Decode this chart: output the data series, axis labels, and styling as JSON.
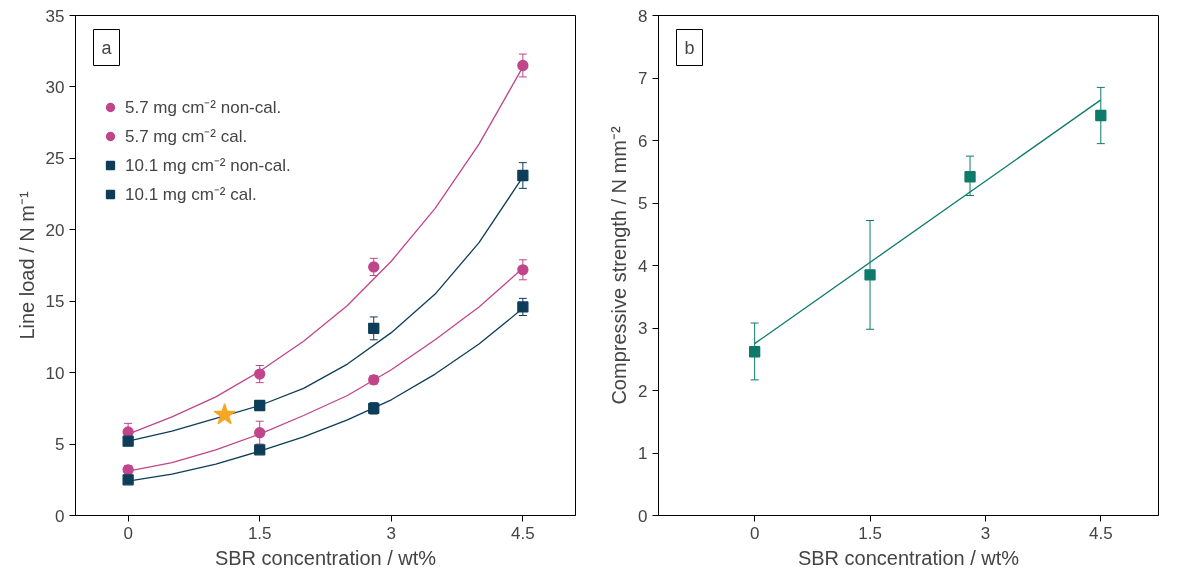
{
  "chart_data": [
    {
      "type": "scatter",
      "xlabel": "SBR concentration / wt%",
      "ylabel": "Line load / N m⁻¹",
      "xlim": [
        -0.6,
        5.1
      ],
      "ylim": [
        0,
        35
      ],
      "xticks": [
        0,
        1.5,
        3,
        4.5
      ],
      "yticks": [
        0,
        5,
        10,
        15,
        20,
        25,
        30,
        35
      ],
      "grid": false,
      "legend": "top left",
      "annotations": [
        "a"
      ],
      "series": [
        {
          "name": "5.7 mg cm⁻² non-cal.",
          "color": "#c0458a",
          "marker": "circle",
          "x": [
            0,
            1.5,
            2.8,
            4.5
          ],
          "values": [
            3.2,
            5.8,
            9.5,
            17.2
          ],
          "errors": [
            0.3,
            0.8,
            0.3,
            0.7
          ]
        },
        {
          "name": "5.7 mg cm⁻² cal.",
          "color": "#c0458a",
          "marker": "circle",
          "x": [
            0,
            1.5,
            2.8,
            4.5
          ],
          "values": [
            5.85,
            9.9,
            17.4,
            31.5
          ],
          "errors": [
            0.6,
            0.6,
            0.6,
            0.8
          ]
        },
        {
          "name": "10.1 mg cm⁻² non-cal.",
          "color": "#0e3d5a",
          "marker": "square",
          "x": [
            0,
            1.5,
            2.8,
            4.5
          ],
          "values": [
            2.5,
            4.6,
            7.5,
            14.6
          ],
          "errors": [
            0.2,
            0.2,
            0.4,
            0.6
          ]
        },
        {
          "name": "10.1 mg cm⁻² cal.",
          "color": "#0e3d5a",
          "marker": "square",
          "x": [
            0,
            1.5,
            2.8,
            4.5
          ],
          "values": [
            5.2,
            7.7,
            13.1,
            23.8
          ],
          "errors": [
            0.2,
            0.3,
            0.8,
            0.9
          ]
        },
        {
          "type": "line",
          "color": "#c0458a",
          "x": [
            0,
            0.5,
            1,
            1.5,
            2,
            2.5,
            3,
            3.5,
            4,
            4.5
          ],
          "values": [
            3.1,
            3.7,
            4.6,
            5.7,
            7.0,
            8.4,
            10.2,
            12.3,
            14.6,
            17.3
          ]
        },
        {
          "type": "line",
          "color": "#c0458a",
          "x": [
            0,
            0.5,
            1,
            1.5,
            2,
            2.5,
            3,
            3.5,
            4,
            4.5
          ],
          "values": [
            5.7,
            6.9,
            8.3,
            10.1,
            12.2,
            14.7,
            17.8,
            21.5,
            26.0,
            31.4
          ]
        },
        {
          "type": "line",
          "color": "#0e3d5a",
          "x": [
            0,
            0.5,
            1,
            1.5,
            2,
            2.5,
            3,
            3.5,
            4,
            4.5
          ],
          "values": [
            2.4,
            2.9,
            3.6,
            4.5,
            5.5,
            6.7,
            8.1,
            9.9,
            12.0,
            14.5
          ]
        },
        {
          "type": "line",
          "color": "#0e3d5a",
          "x": [
            0,
            0.5,
            1,
            1.5,
            2,
            2.5,
            3,
            3.5,
            4,
            4.5
          ],
          "values": [
            5.2,
            5.9,
            6.8,
            7.7,
            8.9,
            10.6,
            12.8,
            15.5,
            19.1,
            23.7
          ]
        },
        {
          "color": "#f5a623",
          "marker": "star",
          "x": [
            1.1
          ],
          "values": [
            7.05
          ]
        }
      ]
    },
    {
      "type": "scatter",
      "xlabel": "SBR concentration / wt%",
      "ylabel": "Compressive strength / N mm⁻²",
      "xlim": [
        -1.25,
        5.25
      ],
      "ylim": [
        0,
        8
      ],
      "xticks": [
        0,
        1.5,
        3,
        4.5
      ],
      "yticks": [
        0,
        1,
        2,
        3,
        4,
        5,
        6,
        7,
        8
      ],
      "grid": false,
      "annotations": [
        "b"
      ],
      "series": [
        {
          "color": "#0e7a6a",
          "marker": "square",
          "x": [
            0,
            1.5,
            2.8,
            4.5
          ],
          "values": [
            2.62,
            3.85,
            5.42,
            6.4
          ],
          "errors": [
            [
              2.17,
              3.08
            ],
            [
              2.98,
              4.72
            ],
            [
              5.12,
              5.75
            ],
            [
              5.95,
              6.85
            ]
          ]
        },
        {
          "type": "line",
          "color": "#0e7a6a",
          "x": [
            0,
            4.5
          ],
          "values": [
            2.75,
            6.65
          ]
        }
      ]
    }
  ]
}
